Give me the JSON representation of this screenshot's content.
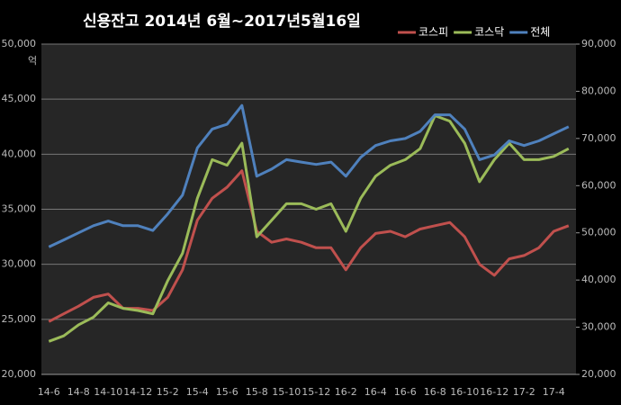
{
  "chart_data": {
    "type": "line",
    "title": "신용잔고 2014년 6월~2017년5월16일",
    "y_label": "억",
    "categories": [
      "14-6",
      null,
      "14-8",
      null,
      "14-10",
      null,
      "14-12",
      null,
      "15-2",
      null,
      "15-4",
      null,
      "15-6",
      null,
      "15-8",
      null,
      "15-10",
      null,
      "15-12",
      null,
      "16-2",
      null,
      "16-4",
      null,
      "16-6",
      null,
      "16-8",
      null,
      "16-10",
      null,
      "16-12",
      null,
      "17-2",
      null,
      "17-4",
      null
    ],
    "series": [
      {
        "name": "코스피",
        "color": "#c0504d",
        "values": [
          24800,
          25500,
          26200,
          27000,
          27300,
          26000,
          26000,
          25800,
          27000,
          29500,
          34000,
          36000,
          37000,
          38500,
          33000,
          32000,
          32300,
          32000,
          31500,
          31500,
          29500,
          31500,
          32800,
          33000,
          32500,
          33200,
          33500,
          33800,
          32500,
          30000,
          29000,
          30500,
          30800,
          31500,
          33000,
          33500
        ]
      },
      {
        "name": "코스닥",
        "color": "#9bbb59",
        "values": [
          23000,
          23500,
          24500,
          25200,
          26500,
          26000,
          25800,
          25500,
          28500,
          31000,
          36000,
          39500,
          39000,
          41000,
          32500,
          34000,
          35500,
          35500,
          35000,
          35500,
          33000,
          36000,
          38000,
          39000,
          39500,
          40500,
          43500,
          43000,
          41000,
          37500,
          39500,
          41000,
          39500,
          39500,
          39800,
          40500
        ]
      },
      {
        "name": "전체",
        "color": "#4f81bd",
        "axis": "y2",
        "values": [
          47000,
          48500,
          50000,
          51500,
          52500,
          51500,
          51500,
          50500,
          54000,
          58000,
          68000,
          72000,
          73000,
          77000,
          62000,
          63500,
          65500,
          65000,
          64500,
          65000,
          62000,
          66000,
          68500,
          69500,
          70000,
          71500,
          75000,
          75000,
          72000,
          65500,
          66500,
          69500,
          68500,
          69500,
          71000,
          72500
        ]
      }
    ],
    "ylim": [
      20000,
      50000
    ],
    "yticks": [
      {
        "value": 20000,
        "label": "20,000"
      },
      {
        "value": 25000,
        "label": "25,000"
      },
      {
        "value": 30000,
        "label": "30,000"
      },
      {
        "value": 35000,
        "label": "35,000"
      },
      {
        "value": 40000,
        "label": "40,000"
      },
      {
        "value": 45000,
        "label": "45,000"
      },
      {
        "value": 50000,
        "label": "50,000"
      }
    ],
    "y2lim": [
      20000,
      90000
    ],
    "y2ticks": [
      {
        "value": 20000,
        "label": "20,000"
      },
      {
        "value": 30000,
        "label": "30,000"
      },
      {
        "value": 40000,
        "label": "40,000"
      },
      {
        "value": 50000,
        "label": "50,000"
      },
      {
        "value": 60000,
        "label": "60,000"
      },
      {
        "value": 70000,
        "label": "70,000"
      },
      {
        "value": 80000,
        "label": "80,000"
      },
      {
        "value": 90000,
        "label": "90,000"
      }
    ],
    "grid": true,
    "legend": "top-right"
  }
}
